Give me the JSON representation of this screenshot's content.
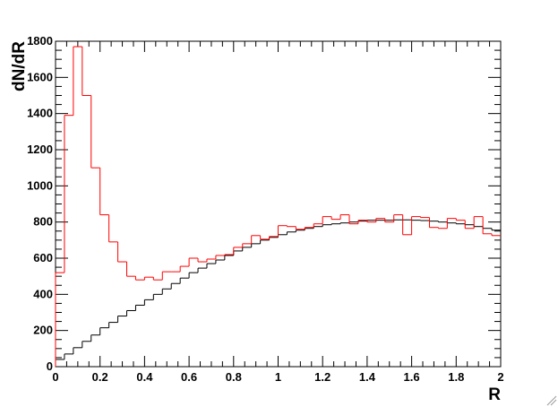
{
  "chart_data": {
    "type": "histogram",
    "x_label": "R",
    "y_label": "dN/dR",
    "bins": [
      0,
      0.04,
      0.08,
      0.12,
      0.16,
      0.2,
      0.24,
      0.28,
      0.32,
      0.36,
      0.4,
      0.44,
      0.48,
      0.52,
      0.56,
      0.6,
      0.64,
      0.68,
      0.72,
      0.76,
      0.8,
      0.84,
      0.88,
      0.92,
      0.96,
      1,
      1.04,
      1.08,
      1.12,
      1.16,
      1.2,
      1.24,
      1.28,
      1.32,
      1.36,
      1.4,
      1.44,
      1.48,
      1.52,
      1.56,
      1.6,
      1.64,
      1.68,
      1.72,
      1.76,
      1.8,
      1.84,
      1.88,
      1.92,
      1.96,
      2
    ],
    "series": [
      {
        "color": "#000000",
        "values": [
          40,
          70,
          105,
          140,
          175,
          215,
          245,
          280,
          310,
          340,
          370,
          400,
          430,
          460,
          490,
          520,
          545,
          570,
          590,
          615,
          640,
          660,
          680,
          700,
          715,
          730,
          745,
          755,
          765,
          775,
          785,
          790,
          795,
          800,
          805,
          810,
          810,
          810,
          812,
          812,
          810,
          808,
          805,
          800,
          795,
          790,
          785,
          775,
          765,
          755
        ]
      },
      {
        "color": "#ff0000",
        "values": [
          520,
          1390,
          1770,
          1500,
          1100,
          840,
          690,
          580,
          500,
          480,
          495,
          480,
          525,
          525,
          555,
          600,
          580,
          595,
          615,
          620,
          660,
          680,
          725,
          705,
          720,
          780,
          775,
          760,
          770,
          790,
          830,
          815,
          840,
          790,
          810,
          800,
          820,
          800,
          840,
          730,
          830,
          825,
          770,
          765,
          820,
          810,
          765,
          830,
          735,
          725
        ]
      }
    ],
    "xlim": [
      0,
      2
    ],
    "ylim": [
      0,
      1800
    ],
    "xticks": [
      0,
      0.2,
      0.4,
      0.6,
      0.8,
      1,
      1.2,
      1.4,
      1.6,
      1.8,
      2
    ],
    "yticks": [
      0,
      200,
      400,
      600,
      800,
      1000,
      1200,
      1400,
      1600,
      1800
    ]
  }
}
